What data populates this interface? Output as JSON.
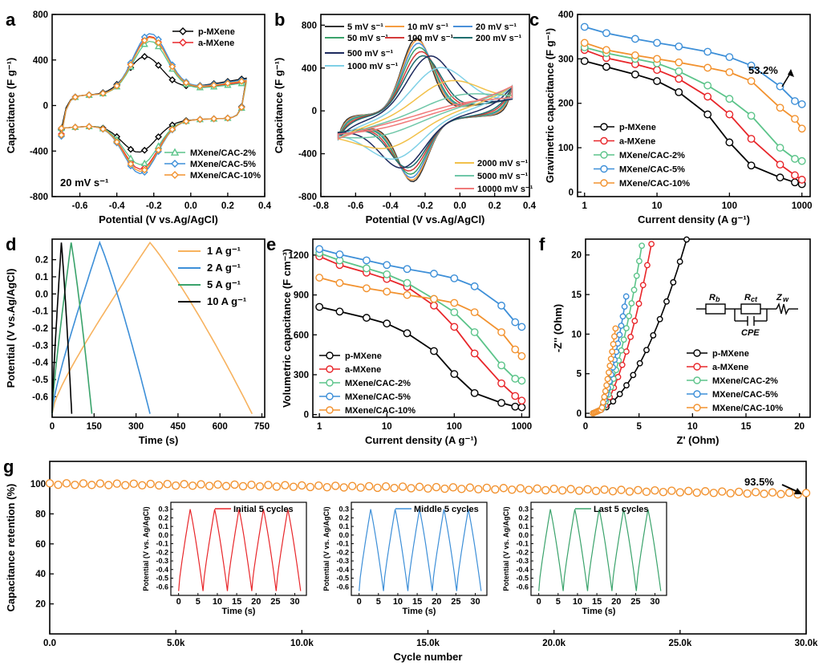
{
  "chart_data": [
    {
      "panel": "a",
      "type": "line",
      "xlabel": "Potential (V vs.Ag/AgCl)",
      "ylabel": "Capacitance (F g⁻¹)",
      "xlim": [
        -0.75,
        0.4
      ],
      "ylim": [
        -800,
        800
      ],
      "xticks": [
        "-0.6",
        "-0.4",
        "-0.2",
        "0.0",
        "0.2",
        "0.4"
      ],
      "xtick_values": [
        -0.6,
        -0.4,
        -0.2,
        0.0,
        0.2,
        0.4
      ],
      "yticks": [
        "-800",
        "-400",
        "0",
        "400",
        "800"
      ],
      "ytick_values": [
        -800,
        -400,
        0,
        400,
        800
      ],
      "annotation": "20 mV s⁻¹",
      "legend_top": [
        "p-MXene",
        "a-MXene"
      ],
      "legend_bottom": [
        "MXene/CAC-2%",
        "MXene/CAC-5%",
        "MXene/CAC-10%"
      ],
      "series": [
        {
          "name": "p-MXene",
          "color": "#000000",
          "marker": "diamond",
          "anodic_peak": [
            -0.25,
            460
          ],
          "cathodic_peak": [
            -0.28,
            -410
          ],
          "end": 240,
          "start_low": -210
        },
        {
          "name": "a-MXene",
          "color": "#e8262a",
          "marker": "diamond",
          "anodic_peak": [
            -0.22,
            640
          ],
          "cathodic_peak": [
            -0.27,
            -560
          ],
          "end": 210,
          "start_low": -250
        },
        {
          "name": "MXene/CAC-2%",
          "color": "#5cc48a",
          "marker": "triangle",
          "anodic_peak": [
            -0.22,
            600
          ],
          "cathodic_peak": [
            -0.27,
            -520
          ],
          "end": 200,
          "start_low": -250
        },
        {
          "name": "MXene/CAC-5%",
          "color": "#3d8fd8",
          "marker": "diamond",
          "anodic_peak": [
            -0.22,
            660
          ],
          "cathodic_peak": [
            -0.27,
            -600
          ],
          "end": 230,
          "start_low": -270
        },
        {
          "name": "MXene/CAC-10%",
          "color": "#f2922f",
          "marker": "diamond",
          "anodic_peak": [
            -0.22,
            630
          ],
          "cathodic_peak": [
            -0.27,
            -580
          ],
          "end": 220,
          "start_low": -260
        }
      ]
    },
    {
      "panel": "b",
      "type": "line",
      "xlabel": "Potential (V vs.Ag/AgCl)",
      "ylabel": "Capacitance (F g⁻¹)",
      "xlim": [
        -0.8,
        0.4
      ],
      "ylim": [
        -800,
        900
      ],
      "xticks": [
        "-0.8",
        "-0.6",
        "-0.4",
        "-0.2",
        "0.0",
        "0.2",
        "0.4"
      ],
      "xtick_values": [
        -0.8,
        -0.6,
        -0.4,
        -0.2,
        0.0,
        0.2,
        0.4
      ],
      "yticks": [
        "-800",
        "-400",
        "0",
        "400",
        "800"
      ],
      "ytick_values": [
        -800,
        -400,
        0,
        400,
        800
      ],
      "series": [
        {
          "name": "5 mV s⁻¹",
          "color": "#333333",
          "amp": 690,
          "peak_shift": 0.0
        },
        {
          "name": "10 mV s⁻¹",
          "color": "#f59d42",
          "amp": 670,
          "peak_shift": 0.01
        },
        {
          "name": "20 mV s⁻¹",
          "color": "#4a90d9",
          "amp": 640,
          "peak_shift": 0.02
        },
        {
          "name": "50 mV s⁻¹",
          "color": "#3aa36b",
          "amp": 600,
          "peak_shift": 0.03
        },
        {
          "name": "100 mV s⁻¹",
          "color": "#d43a3a",
          "amp": 560,
          "peak_shift": 0.05
        },
        {
          "name": "200 mV s⁻¹",
          "color": "#1e6e6e",
          "amp": 520,
          "peak_shift": 0.07
        },
        {
          "name": "500 mV s⁻¹",
          "color": "#1d2a5e",
          "amp": 520,
          "peak_shift": 0.15
        },
        {
          "name": "1000 mV s⁻¹",
          "color": "#7fd0e6",
          "amp": 420,
          "peak_shift": 0.25
        },
        {
          "name": "2000 mV s⁻¹",
          "color": "#f2c14a",
          "amp": 300,
          "peak_shift": 0.35
        },
        {
          "name": "5000 mV s⁻¹",
          "color": "#6fc7a8",
          "amp": 160,
          "peak_shift": 0.45
        },
        {
          "name": "10000 mV s⁻¹",
          "color": "#f07a7a",
          "amp": 80,
          "peak_shift": 0.5
        }
      ]
    },
    {
      "panel": "c",
      "type": "line",
      "xlabel": "Current density (A g⁻¹)",
      "ylabel": "Gravimetric capacitance (F g⁻¹)",
      "xscale": "log",
      "xlim": [
        0.8,
        1300
      ],
      "ylim": [
        -10,
        400
      ],
      "xticks": [
        "1",
        "10",
        "100",
        "1000"
      ],
      "xtick_values": [
        1,
        10,
        100,
        1000
      ],
      "yticks": [
        "0",
        "100",
        "200",
        "300",
        "400"
      ],
      "ytick_values": [
        0,
        100,
        200,
        300,
        400
      ],
      "annotation": "53.2%",
      "x": [
        1,
        2,
        5,
        10,
        20,
        50,
        100,
        200,
        500,
        800,
        1000
      ],
      "series": [
        {
          "name": "p-MXene",
          "color": "#000000",
          "values": [
            295,
            282,
            265,
            250,
            225,
            175,
            112,
            60,
            33,
            22,
            18
          ]
        },
        {
          "name": "a-MXene",
          "color": "#e8262a",
          "values": [
            320,
            302,
            288,
            275,
            255,
            215,
            175,
            120,
            62,
            38,
            28
          ]
        },
        {
          "name": "MXene/CAC-2%",
          "color": "#5cc48a",
          "values": [
            326,
            313,
            300,
            290,
            272,
            240,
            210,
            172,
            100,
            75,
            70
          ]
        },
        {
          "name": "MXene/CAC-5%",
          "color": "#3d8fd8",
          "values": [
            372,
            358,
            345,
            336,
            328,
            316,
            304,
            285,
            238,
            205,
            198
          ]
        },
        {
          "name": "MXene/CAC-10%",
          "color": "#f2922f",
          "values": [
            336,
            320,
            308,
            300,
            292,
            280,
            270,
            250,
            190,
            165,
            143
          ]
        }
      ]
    },
    {
      "panel": "d",
      "type": "line",
      "xlabel": "Time (s)",
      "ylabel": "Potential (V vs.Ag/AgCl)",
      "xlim": [
        0,
        760
      ],
      "ylim": [
        -0.72,
        0.32
      ],
      "xticks": [
        "0",
        "150",
        "300",
        "450",
        "600",
        "750"
      ],
      "xtick_values": [
        0,
        150,
        300,
        450,
        600,
        750
      ],
      "yticks": [
        "-0.6",
        "-0.5",
        "-0.4",
        "-0.3",
        "-0.2",
        "-0.1",
        "0.0",
        "0.1",
        "0.2"
      ],
      "ytick_values": [
        -0.6,
        -0.5,
        -0.4,
        -0.3,
        -0.2,
        -0.1,
        0.0,
        0.1,
        0.2
      ],
      "series": [
        {
          "name": "1 A g⁻¹",
          "color": "#f7b25e",
          "charge_end": 350,
          "discharge_end": 715
        },
        {
          "name": "2 A g⁻¹",
          "color": "#3d8fd8",
          "charge_end": 170,
          "discharge_end": 350
        },
        {
          "name": "5 A g⁻¹",
          "color": "#3aa36b",
          "charge_end": 68,
          "discharge_end": 142
        },
        {
          "name": "10 A g⁻¹",
          "color": "#000000",
          "charge_end": 33,
          "discharge_end": 70
        }
      ]
    },
    {
      "panel": "e",
      "type": "line",
      "xlabel": "Current density (A g⁻¹)",
      "ylabel": "Volumetric capacitance (F cm⁻³)",
      "xscale": "log",
      "xlim": [
        0.8,
        1300
      ],
      "ylim": [
        -20,
        1320
      ],
      "xticks": [
        "1",
        "10",
        "100",
        "1000"
      ],
      "xtick_values": [
        1,
        10,
        100,
        1000
      ],
      "yticks": [
        "0",
        "300",
        "600",
        "900",
        "1200"
      ],
      "ytick_values": [
        0,
        300,
        600,
        900,
        1200
      ],
      "x": [
        1,
        2,
        5,
        10,
        20,
        50,
        100,
        200,
        500,
        800,
        1000
      ],
      "series": [
        {
          "name": "p-MXene",
          "color": "#000000",
          "values": [
            810,
            775,
            728,
            685,
            612,
            478,
            305,
            162,
            88,
            60,
            55
          ]
        },
        {
          "name": "a-MXene",
          "color": "#e8262a",
          "values": [
            1190,
            1125,
            1068,
            1020,
            960,
            820,
            660,
            460,
            235,
            140,
            105
          ]
        },
        {
          "name": "MXene/CAC-2%",
          "color": "#5cc48a",
          "values": [
            1215,
            1160,
            1100,
            1055,
            990,
            870,
            770,
            620,
            370,
            270,
            255
          ]
        },
        {
          "name": "MXene/CAC-5%",
          "color": "#3d8fd8",
          "values": [
            1245,
            1205,
            1160,
            1125,
            1095,
            1060,
            1025,
            965,
            820,
            695,
            660
          ]
        },
        {
          "name": "MXene/CAC-10%",
          "color": "#f2922f",
          "values": [
            1030,
            990,
            950,
            925,
            900,
            870,
            840,
            770,
            620,
            490,
            440
          ]
        }
      ]
    },
    {
      "panel": "f",
      "type": "line",
      "xlabel": "Z' (Ohm)",
      "ylabel": "-Z'' (Ohm)",
      "xlim": [
        0,
        21
      ],
      "ylim": [
        -0.5,
        22
      ],
      "xticks": [
        "0",
        "5",
        "10",
        "15",
        "20"
      ],
      "xtick_values": [
        0,
        5,
        10,
        15,
        20
      ],
      "yticks": [
        "0",
        "5",
        "10",
        "15",
        "20"
      ],
      "ytick_values": [
        0,
        5,
        10,
        15,
        20
      ],
      "circuit_labels": [
        "R",
        "b",
        "R",
        "ct",
        "Z",
        "w",
        "CPE"
      ],
      "series": [
        {
          "name": "p-MXene",
          "color": "#000000",
          "knee": 1.2,
          "slope": 2.0,
          "xmax": 13.2
        },
        {
          "name": "a-MXene",
          "color": "#e8262a",
          "knee": 1.0,
          "slope": 4.5,
          "xmax": 8.5
        },
        {
          "name": "MXene/CAC-2%",
          "color": "#5cc48a",
          "knee": 0.9,
          "slope": 6.0,
          "xmax": 5.5
        },
        {
          "name": "MXene/CAC-5%",
          "color": "#3d8fd8",
          "knee": 0.8,
          "slope": 8.0,
          "xmax": 3.8
        },
        {
          "name": "MXene/CAC-10%",
          "color": "#f2922f",
          "knee": 0.8,
          "slope": 12.0,
          "xmax": 2.8
        }
      ]
    },
    {
      "panel": "g",
      "type": "scatter",
      "xlabel": "Cycle number",
      "ylabel": "Capacitance retention (%)",
      "xlim": [
        0,
        30000
      ],
      "ylim": [
        0,
        115
      ],
      "xticks": [
        "0.0",
        "5.0k",
        "10.0k",
        "15.0k",
        "20.0k",
        "25.0k",
        "30.0k"
      ],
      "xtick_values": [
        0,
        5000,
        10000,
        15000,
        20000,
        25000,
        30000
      ],
      "yticks": [
        "20",
        "40",
        "60",
        "80",
        "100"
      ],
      "ytick_values": [
        20,
        40,
        60,
        80,
        100
      ],
      "annotation": "93.5%",
      "color": "#f2922f",
      "start": 100,
      "end": 93.5,
      "insets": [
        {
          "title": "Initial 5 cycles",
          "color": "#e8262a",
          "xlabel": "Time (s)",
          "ylabel": "Potential (V vs. Ag/AgCl)",
          "xticks": [
            "0",
            "5",
            "10",
            "15",
            "20",
            "25",
            "30"
          ],
          "yticks": [
            "0.3",
            "0.2",
            "0.1",
            "0.0",
            "-0.1",
            "-0.2",
            "-0.3",
            "-0.4",
            "-0.5",
            "-0.6"
          ]
        },
        {
          "title": "Middle 5 cycles",
          "color": "#3d8fd8",
          "xlabel": "Time (s)",
          "ylabel": "Potential (V vs. Ag/AgCl)",
          "xticks": [
            "0",
            "5",
            "10",
            "15",
            "20",
            "25",
            "30"
          ],
          "yticks": [
            "0.3",
            "0.2",
            "0.1",
            "0.0",
            "-0.1",
            "-0.2",
            "-0.3",
            "-0.4",
            "-0.5",
            "-0.6"
          ]
        },
        {
          "title": "Last 5 cycles",
          "color": "#3aa36b",
          "xlabel": "Time (s)",
          "ylabel": "Potential (V vs. Ag/AgCl)",
          "xticks": [
            "0",
            "5",
            "10",
            "15",
            "20",
            "25",
            "30"
          ],
          "yticks": [
            "0.3",
            "0.2",
            "0.1",
            "0.0",
            "-0.1",
            "-0.2",
            "-0.3",
            "-0.4",
            "-0.5",
            "-0.6"
          ]
        }
      ]
    }
  ]
}
